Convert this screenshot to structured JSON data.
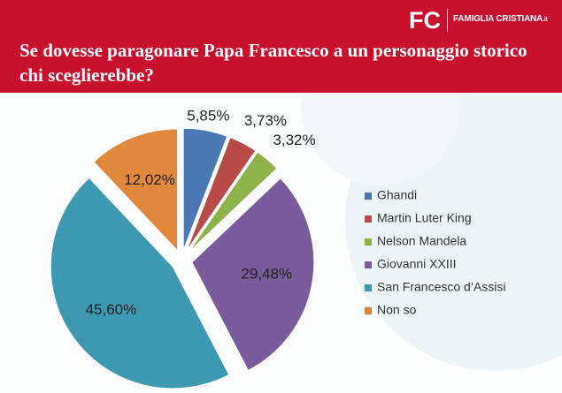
{
  "header": {
    "logo": "FC",
    "brand": "FAMIGLIA CRISTIANA",
    "brand_suffix": ".it"
  },
  "chart_data": {
    "type": "pie",
    "title": "Se dovesse paragonare Papa Francesco a un personaggio storico chi sceglierebbe?",
    "categories": [
      "Ghandi",
      "Martin Luter King",
      "Nelson Mandela",
      "Giovanni XXIII",
      "San Francesco d’Assisi",
      "Non so"
    ],
    "values": [
      5.85,
      3.73,
      3.32,
      29.48,
      45.6,
      12.02
    ],
    "value_labels": [
      "5,85%",
      "3,73%",
      "3,32%",
      "29,48%",
      "45,60%",
      "12,02%"
    ],
    "colors": [
      "#4a78b5",
      "#b84a47",
      "#8db34a",
      "#7a5b9b",
      "#3d99b1",
      "#e0893c"
    ],
    "legend": "right"
  }
}
